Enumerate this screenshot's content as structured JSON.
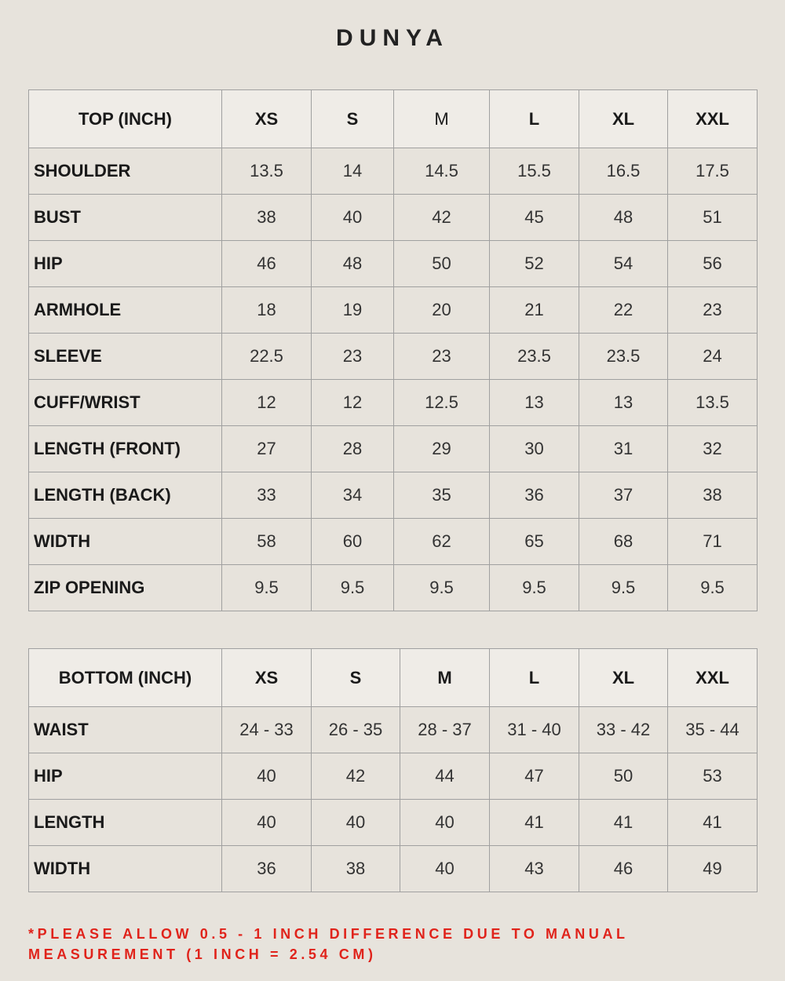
{
  "title": "DUNYA",
  "top": {
    "header": [
      "TOP (INCH)",
      "XS",
      "S",
      "M",
      "L",
      "XL",
      "XXL"
    ],
    "rows": [
      [
        "SHOULDER",
        13.5,
        14,
        14.5,
        15.5,
        16.5,
        17.5
      ],
      [
        "BUST",
        38,
        40,
        42,
        45,
        48,
        51
      ],
      [
        "HIP",
        46,
        48,
        50,
        52,
        54,
        56
      ],
      [
        "ARMHOLE",
        18,
        19,
        20,
        21,
        22,
        23
      ],
      [
        "SLEEVE",
        22.5,
        23,
        23,
        23.5,
        23.5,
        24
      ],
      [
        "CUFF/WRIST",
        12,
        12,
        12.5,
        13,
        13,
        13.5
      ],
      [
        "LENGTH (FRONT)",
        27,
        28,
        29,
        30,
        31,
        32
      ],
      [
        "LENGTH (BACK)",
        33,
        34,
        35,
        36,
        37,
        38
      ],
      [
        "WIDTH",
        58,
        60,
        62,
        65,
        68,
        71
      ],
      [
        "ZIP OPENING",
        9.5,
        9.5,
        9.5,
        9.5,
        9.5,
        9.5
      ]
    ]
  },
  "bottom": {
    "header": [
      "BOTTOM (INCH)",
      "XS",
      "S",
      "M",
      "L",
      "XL",
      "XXL"
    ],
    "rows": [
      [
        "WAIST",
        "24 - 33",
        "26 - 35",
        "28 - 37",
        "31 - 40",
        "33 - 42",
        "35 - 44"
      ],
      [
        "HIP",
        40,
        42,
        44,
        47,
        50,
        53
      ],
      [
        "LENGTH",
        40,
        40,
        40,
        41,
        41,
        41
      ],
      [
        "WIDTH",
        36,
        38,
        40,
        43,
        46,
        49
      ]
    ]
  },
  "note": [
    "*PLEASE ALLOW 0.5 - 1 INCH DIFFERENCE DUE TO MANUAL",
    "MEASUREMENT (1 INCH = 2.54 CM)"
  ]
}
